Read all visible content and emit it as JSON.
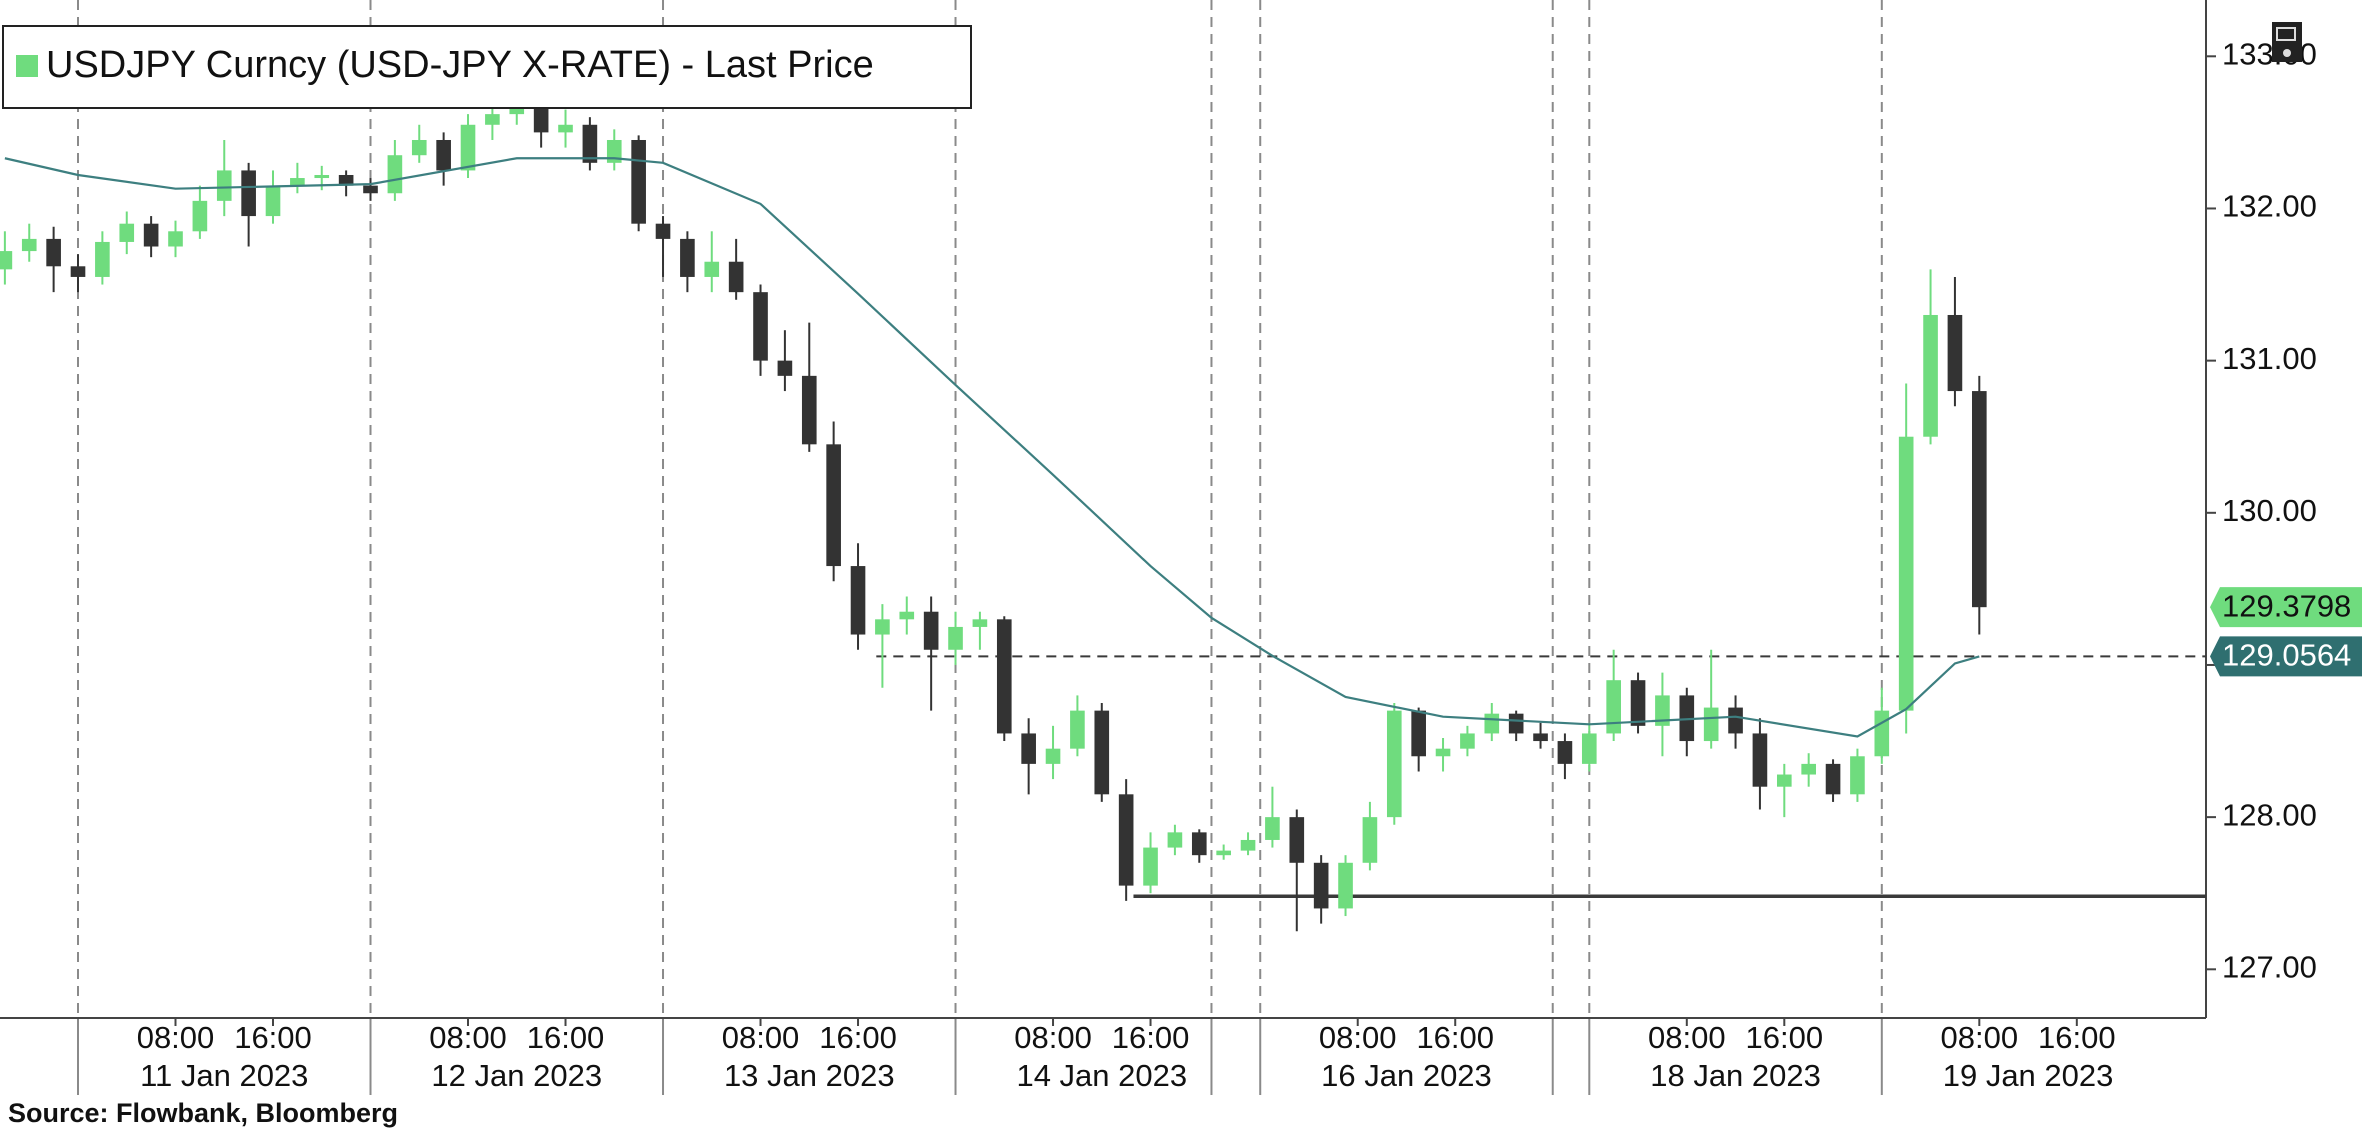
{
  "chart_data": {
    "type": "candlestick",
    "legend_label": "USDJPY Curncy (USD-JPY X-RATE) - Last Price",
    "source": "Source: Flowbank, Bloomberg",
    "xlim": [
      -6.4,
      174.6
    ],
    "ylim": [
      126.68,
      133.37
    ],
    "yticks": [
      {
        "value": 127,
        "label": "127.00"
      },
      {
        "value": 128,
        "label": "128.00"
      },
      {
        "value": 129,
        "label": "129.00"
      },
      {
        "value": 130,
        "label": "130.00"
      },
      {
        "value": 131,
        "label": "131.00"
      },
      {
        "value": 132,
        "label": "132.00"
      },
      {
        "value": 133,
        "label": "133.00"
      }
    ],
    "xticks": [
      {
        "value": 8,
        "label": "08:00"
      },
      {
        "value": 16,
        "label": "16:00"
      },
      {
        "value": 32,
        "label": "08:00"
      },
      {
        "value": 40,
        "label": "16:00"
      },
      {
        "value": 56,
        "label": "08:00"
      },
      {
        "value": 64,
        "label": "16:00"
      },
      {
        "value": 80,
        "label": "08:00"
      },
      {
        "value": 88,
        "label": "16:00"
      },
      {
        "value": 105,
        "label": "08:00"
      },
      {
        "value": 113,
        "label": "16:00"
      },
      {
        "value": 132,
        "label": "08:00"
      },
      {
        "value": 140,
        "label": "16:00"
      },
      {
        "value": 156,
        "label": "08:00"
      },
      {
        "value": 164,
        "label": "16:00"
      }
    ],
    "date_labels": [
      {
        "value": 12,
        "label": "11 Jan 2023"
      },
      {
        "value": 36,
        "label": "12 Jan 2023"
      },
      {
        "value": 60,
        "label": "13 Jan 2023"
      },
      {
        "value": 84,
        "label": "14 Jan 2023"
      },
      {
        "value": 109,
        "label": "16 Jan 2023"
      },
      {
        "value": 136,
        "label": "18 Jan 2023"
      },
      {
        "value": 160,
        "label": "19 Jan 2023"
      }
    ],
    "day_lines": [
      0,
      24,
      48,
      72,
      93,
      97,
      121,
      124,
      148
    ],
    "reference_lines": [
      {
        "y": 127.48,
        "x_start": 86.6,
        "style": "solid",
        "color": "#3a3a3a"
      },
      {
        "y": 129.0564,
        "x_start": 65.5,
        "style": "dashed",
        "color": "#3a3a3a"
      }
    ],
    "series": [
      {
        "name": "USDJPY Curncy (USD-JPY X-RATE) - Last Price",
        "up_color": "#6fdc7e",
        "down_color": "#333333",
        "label_color": "#6fdc7e",
        "x": [
          -6,
          -4,
          -2,
          0,
          2,
          4,
          6,
          8,
          10,
          12,
          14,
          16,
          18,
          20,
          22,
          24,
          26,
          28,
          30,
          32,
          34,
          36,
          38,
          40,
          42,
          44,
          46,
          48,
          50,
          52,
          54,
          56,
          58,
          60,
          62,
          64,
          66,
          68,
          70,
          72,
          74,
          76,
          78,
          80,
          82,
          84,
          86,
          88,
          90,
          92,
          94,
          96,
          98,
          100,
          102,
          104,
          106,
          108,
          110,
          112,
          114,
          116,
          118,
          120,
          122,
          124,
          126,
          128,
          130,
          132,
          134,
          136,
          138,
          140,
          142,
          144,
          146,
          148,
          150,
          152,
          154,
          156
        ],
        "ohlc": [
          [
            131.6,
            131.85,
            131.5,
            131.72
          ],
          [
            131.72,
            131.9,
            131.65,
            131.8
          ],
          [
            131.8,
            131.88,
            131.45,
            131.62
          ],
          [
            131.62,
            131.7,
            131.45,
            131.55
          ],
          [
            131.55,
            131.85,
            131.5,
            131.78
          ],
          [
            131.78,
            131.98,
            131.7,
            131.9
          ],
          [
            131.9,
            131.95,
            131.68,
            131.75
          ],
          [
            131.75,
            131.92,
            131.68,
            131.85
          ],
          [
            131.85,
            132.15,
            131.8,
            132.05
          ],
          [
            132.05,
            132.45,
            131.95,
            132.25
          ],
          [
            132.25,
            132.3,
            131.75,
            131.95
          ],
          [
            131.95,
            132.25,
            131.9,
            132.15
          ],
          [
            132.15,
            132.3,
            132.1,
            132.2
          ],
          [
            132.2,
            132.28,
            132.12,
            132.22
          ],
          [
            132.22,
            132.25,
            132.08,
            132.15
          ],
          [
            132.15,
            132.2,
            132.05,
            132.1
          ],
          [
            132.1,
            132.45,
            132.05,
            132.35
          ],
          [
            132.35,
            132.55,
            132.3,
            132.45
          ],
          [
            132.45,
            132.5,
            132.15,
            132.25
          ],
          [
            132.25,
            132.62,
            132.2,
            132.55
          ],
          [
            132.55,
            132.7,
            132.45,
            132.62
          ],
          [
            132.62,
            132.85,
            132.55,
            132.7
          ],
          [
            132.7,
            132.75,
            132.4,
            132.5
          ],
          [
            132.5,
            132.65,
            132.4,
            132.55
          ],
          [
            132.55,
            132.6,
            132.25,
            132.3
          ],
          [
            132.3,
            132.52,
            132.25,
            132.45
          ],
          [
            132.45,
            132.48,
            131.85,
            131.9
          ],
          [
            131.9,
            131.95,
            131.55,
            131.8
          ],
          [
            131.8,
            131.85,
            131.45,
            131.55
          ],
          [
            131.55,
            131.85,
            131.45,
            131.65
          ],
          [
            131.65,
            131.8,
            131.4,
            131.45
          ],
          [
            131.45,
            131.5,
            130.9,
            131.0
          ],
          [
            131.0,
            131.2,
            130.8,
            130.9
          ],
          [
            130.9,
            131.25,
            130.4,
            130.45
          ],
          [
            130.45,
            130.6,
            129.55,
            129.65
          ],
          [
            129.65,
            129.8,
            129.1,
            129.2
          ],
          [
            129.2,
            129.4,
            128.85,
            129.3
          ],
          [
            129.3,
            129.45,
            129.2,
            129.35
          ],
          [
            129.35,
            129.45,
            128.7,
            129.1
          ],
          [
            129.1,
            129.35,
            129.0,
            129.25
          ],
          [
            129.25,
            129.35,
            129.1,
            129.3
          ],
          [
            129.3,
            129.32,
            128.5,
            128.55
          ],
          [
            128.55,
            128.65,
            128.15,
            128.35
          ],
          [
            128.35,
            128.6,
            128.25,
            128.45
          ],
          [
            128.45,
            128.8,
            128.4,
            128.7
          ],
          [
            128.7,
            128.75,
            128.1,
            128.15
          ],
          [
            128.15,
            128.25,
            127.45,
            127.55
          ],
          [
            127.55,
            127.9,
            127.5,
            127.8
          ],
          [
            127.8,
            127.95,
            127.75,
            127.9
          ],
          [
            127.9,
            127.92,
            127.7,
            127.75
          ],
          [
            127.75,
            127.82,
            127.72,
            127.78
          ],
          [
            127.78,
            127.9,
            127.75,
            127.85
          ],
          [
            127.85,
            128.2,
            127.8,
            128.0
          ],
          [
            128.0,
            128.05,
            127.25,
            127.7
          ],
          [
            127.7,
            127.75,
            127.3,
            127.4
          ],
          [
            127.4,
            127.75,
            127.35,
            127.7
          ],
          [
            127.7,
            128.1,
            127.65,
            128.0
          ],
          [
            128.0,
            128.75,
            127.95,
            128.7
          ],
          [
            128.7,
            128.72,
            128.3,
            128.4
          ],
          [
            128.4,
            128.52,
            128.3,
            128.45
          ],
          [
            128.45,
            128.6,
            128.4,
            128.55
          ],
          [
            128.55,
            128.75,
            128.5,
            128.68
          ],
          [
            128.68,
            128.7,
            128.5,
            128.55
          ],
          [
            128.55,
            128.62,
            128.45,
            128.5
          ],
          [
            128.5,
            128.55,
            128.25,
            128.35
          ],
          [
            128.35,
            128.62,
            128.3,
            128.55
          ],
          [
            128.55,
            129.1,
            128.5,
            128.9
          ],
          [
            128.9,
            128.95,
            128.55,
            128.6
          ],
          [
            128.6,
            128.95,
            128.4,
            128.8
          ],
          [
            128.8,
            128.85,
            128.4,
            128.5
          ],
          [
            128.5,
            129.1,
            128.45,
            128.72
          ],
          [
            128.72,
            128.8,
            128.45,
            128.55
          ],
          [
            128.55,
            128.65,
            128.05,
            128.2
          ],
          [
            128.2,
            128.35,
            128.0,
            128.28
          ],
          [
            128.28,
            128.42,
            128.2,
            128.35
          ],
          [
            128.35,
            128.38,
            128.1,
            128.15
          ],
          [
            128.15,
            128.45,
            128.1,
            128.4
          ],
          [
            128.4,
            128.85,
            128.35,
            128.7
          ],
          [
            128.7,
            130.85,
            128.55,
            130.5
          ],
          [
            130.5,
            131.6,
            130.45,
            131.3
          ],
          [
            131.3,
            131.55,
            130.7,
            130.8
          ],
          [
            130.8,
            130.9,
            129.2,
            129.3798
          ]
        ]
      },
      {
        "type": "line",
        "color": "#3d7f80",
        "label_color": "#2f6f70",
        "x": [
          -6,
          0,
          8,
          24,
          36,
          44,
          48,
          56,
          64,
          72,
          80,
          88,
          93,
          98,
          104,
          112,
          124,
          136,
          146,
          150,
          154,
          156
        ],
        "values": [
          132.33,
          132.22,
          132.13,
          132.16,
          132.33,
          132.33,
          132.3,
          132.03,
          131.44,
          130.84,
          130.25,
          129.65,
          129.31,
          129.06,
          128.79,
          128.66,
          128.61,
          128.66,
          128.53,
          128.71,
          129.01,
          129.0564
        ]
      }
    ]
  }
}
